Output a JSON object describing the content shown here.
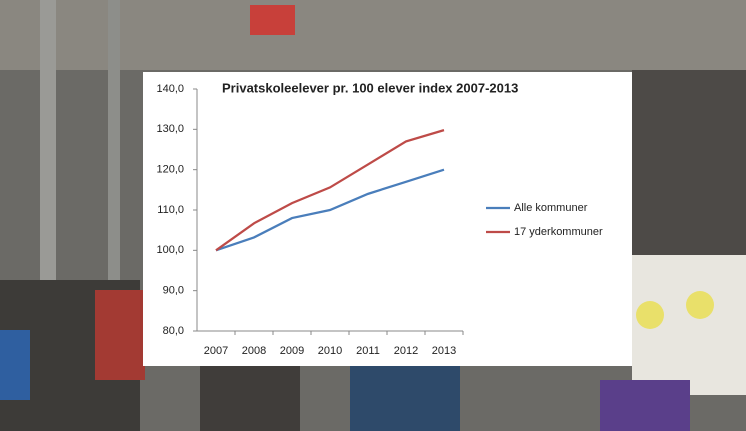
{
  "chart_data": {
    "type": "line",
    "title": "Privatskoleelever pr. 100 elever index 2007-2013",
    "categories": [
      "2007",
      "2008",
      "2009",
      "2010",
      "2011",
      "2012",
      "2013"
    ],
    "series": [
      {
        "name": "Alle kommuner",
        "color": "#4a7ebb",
        "values": [
          100,
          103.2,
          108,
          110,
          114,
          117,
          120
        ]
      },
      {
        "name": "17 yderkommuner",
        "color": "#be4b48",
        "values": [
          100,
          106.7,
          111.7,
          115.6,
          121.3,
          127,
          129.8
        ]
      }
    ],
    "ylim": [
      80,
      140
    ],
    "yticks": [
      {
        "value": 80,
        "label": "80,0"
      },
      {
        "value": 90,
        "label": "90,0"
      },
      {
        "value": 100,
        "label": "100,0"
      },
      {
        "value": 110,
        "label": "110,0"
      },
      {
        "value": 120,
        "label": "120,0"
      },
      {
        "value": 130,
        "label": "130,0"
      },
      {
        "value": 140,
        "label": "140,0"
      }
    ],
    "grid": false,
    "legend": "right"
  }
}
